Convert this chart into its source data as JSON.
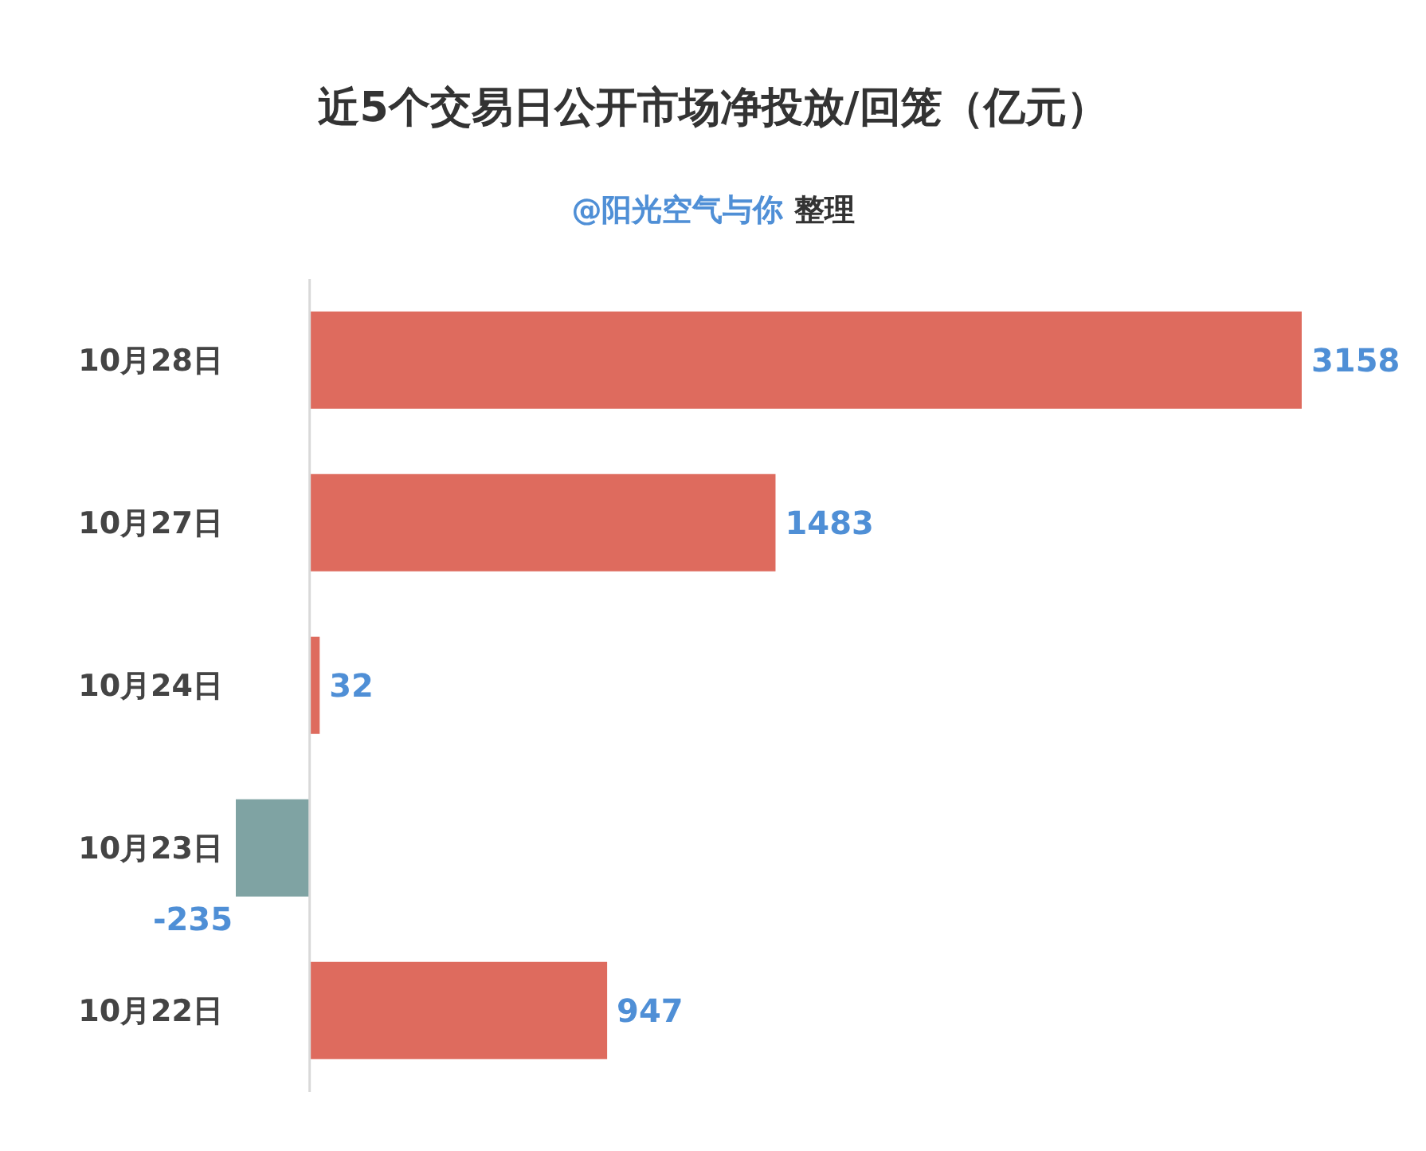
{
  "chart_data": {
    "type": "bar",
    "orientation": "horizontal",
    "title": "近5个交易日公开市场净投放/回笼（亿元）",
    "subtitle": "@阳光空气与你 整理",
    "categories": [
      "10月28日",
      "10月27日",
      "10月24日",
      "10月23日",
      "10月22日"
    ],
    "values": [
      3158,
      1483,
      32,
      -235,
      947
    ],
    "colors": [
      "#de6b5e",
      "#de6b5e",
      "#de6b5e",
      "#7fa3a3",
      "#de6b5e"
    ],
    "data_labels": true
  }
}
